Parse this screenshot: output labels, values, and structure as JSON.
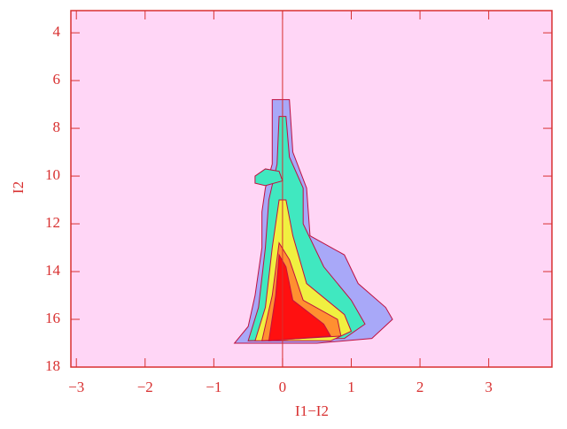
{
  "chart_data": {
    "type": "density",
    "xlabel": "I1−I2",
    "ylabel": "I2",
    "xlim": [
      -3.08,
      3.92
    ],
    "ylim": [
      18,
      3.07
    ],
    "xticks": [
      {
        "value": -3,
        "label": "−3"
      },
      {
        "value": -2,
        "label": "−2"
      },
      {
        "value": -1,
        "label": "−1"
      },
      0,
      1,
      2,
      3
    ],
    "yticks": [
      4,
      6,
      8,
      10,
      12,
      14,
      16,
      18
    ],
    "vline": 0,
    "background": "#ffd6f6",
    "axis_color": "#d83030",
    "contours": [
      {
        "color": "#a8a8f8",
        "polygons": [
          [
            [
              -0.15,
              6.8
            ],
            [
              0.1,
              6.8
            ],
            [
              0.15,
              9
            ],
            [
              0.35,
              10.5
            ],
            [
              0.4,
              12.5
            ],
            [
              0.9,
              13.3
            ],
            [
              1.1,
              14.5
            ],
            [
              1.5,
              15.5
            ],
            [
              1.6,
              16
            ],
            [
              1.3,
              16.8
            ],
            [
              0.5,
              17
            ],
            [
              -0.7,
              17
            ],
            [
              -0.5,
              16.3
            ],
            [
              -0.4,
              15
            ],
            [
              -0.3,
              13
            ],
            [
              -0.3,
              11.5
            ],
            [
              -0.25,
              10.5
            ],
            [
              -0.15,
              9.5
            ]
          ]
        ]
      },
      {
        "color": "#40e8c0",
        "polygons": [
          [
            [
              -0.05,
              7.5
            ],
            [
              0.05,
              7.5
            ],
            [
              0.1,
              9.2
            ],
            [
              0.3,
              10.5
            ],
            [
              0.3,
              12
            ],
            [
              0.6,
              13.8
            ],
            [
              1.0,
              15.2
            ],
            [
              1.2,
              16.2
            ],
            [
              0.9,
              16.8
            ],
            [
              -0.5,
              16.9
            ],
            [
              -0.35,
              15.5
            ],
            [
              -0.25,
              13
            ],
            [
              -0.2,
              11
            ],
            [
              -0.08,
              9.5
            ]
          ],
          [
            [
              -0.4,
              10
            ],
            [
              -0.25,
              9.7
            ],
            [
              -0.05,
              9.8
            ],
            [
              0,
              10.2
            ],
            [
              -0.25,
              10.4
            ],
            [
              -0.4,
              10.3
            ]
          ]
        ]
      },
      {
        "color": "#f0f040",
        "polygons": [
          [
            [
              -0.05,
              11
            ],
            [
              0.05,
              11
            ],
            [
              0.15,
              12.5
            ],
            [
              0.35,
              14.5
            ],
            [
              0.9,
              15.8
            ],
            [
              1.0,
              16.5
            ],
            [
              0.7,
              16.9
            ],
            [
              -0.4,
              16.9
            ],
            [
              -0.25,
              15.5
            ],
            [
              -0.15,
              13
            ]
          ]
        ]
      },
      {
        "color": "#ff9030",
        "polygons": [
          [
            [
              -0.05,
              12.8
            ],
            [
              0.1,
              13.5
            ],
            [
              0.3,
              15.2
            ],
            [
              0.8,
              16
            ],
            [
              0.85,
              16.7
            ],
            [
              -0.3,
              16.9
            ],
            [
              -0.15,
              15
            ]
          ]
        ]
      },
      {
        "color": "#ff1010",
        "polygons": [
          [
            [
              -0.05,
              13.3
            ],
            [
              0.05,
              13.8
            ],
            [
              0.15,
              15.2
            ],
            [
              0.6,
              16.2
            ],
            [
              0.7,
              16.7
            ],
            [
              -0.2,
              16.9
            ],
            [
              -0.1,
              15
            ]
          ]
        ]
      }
    ]
  }
}
